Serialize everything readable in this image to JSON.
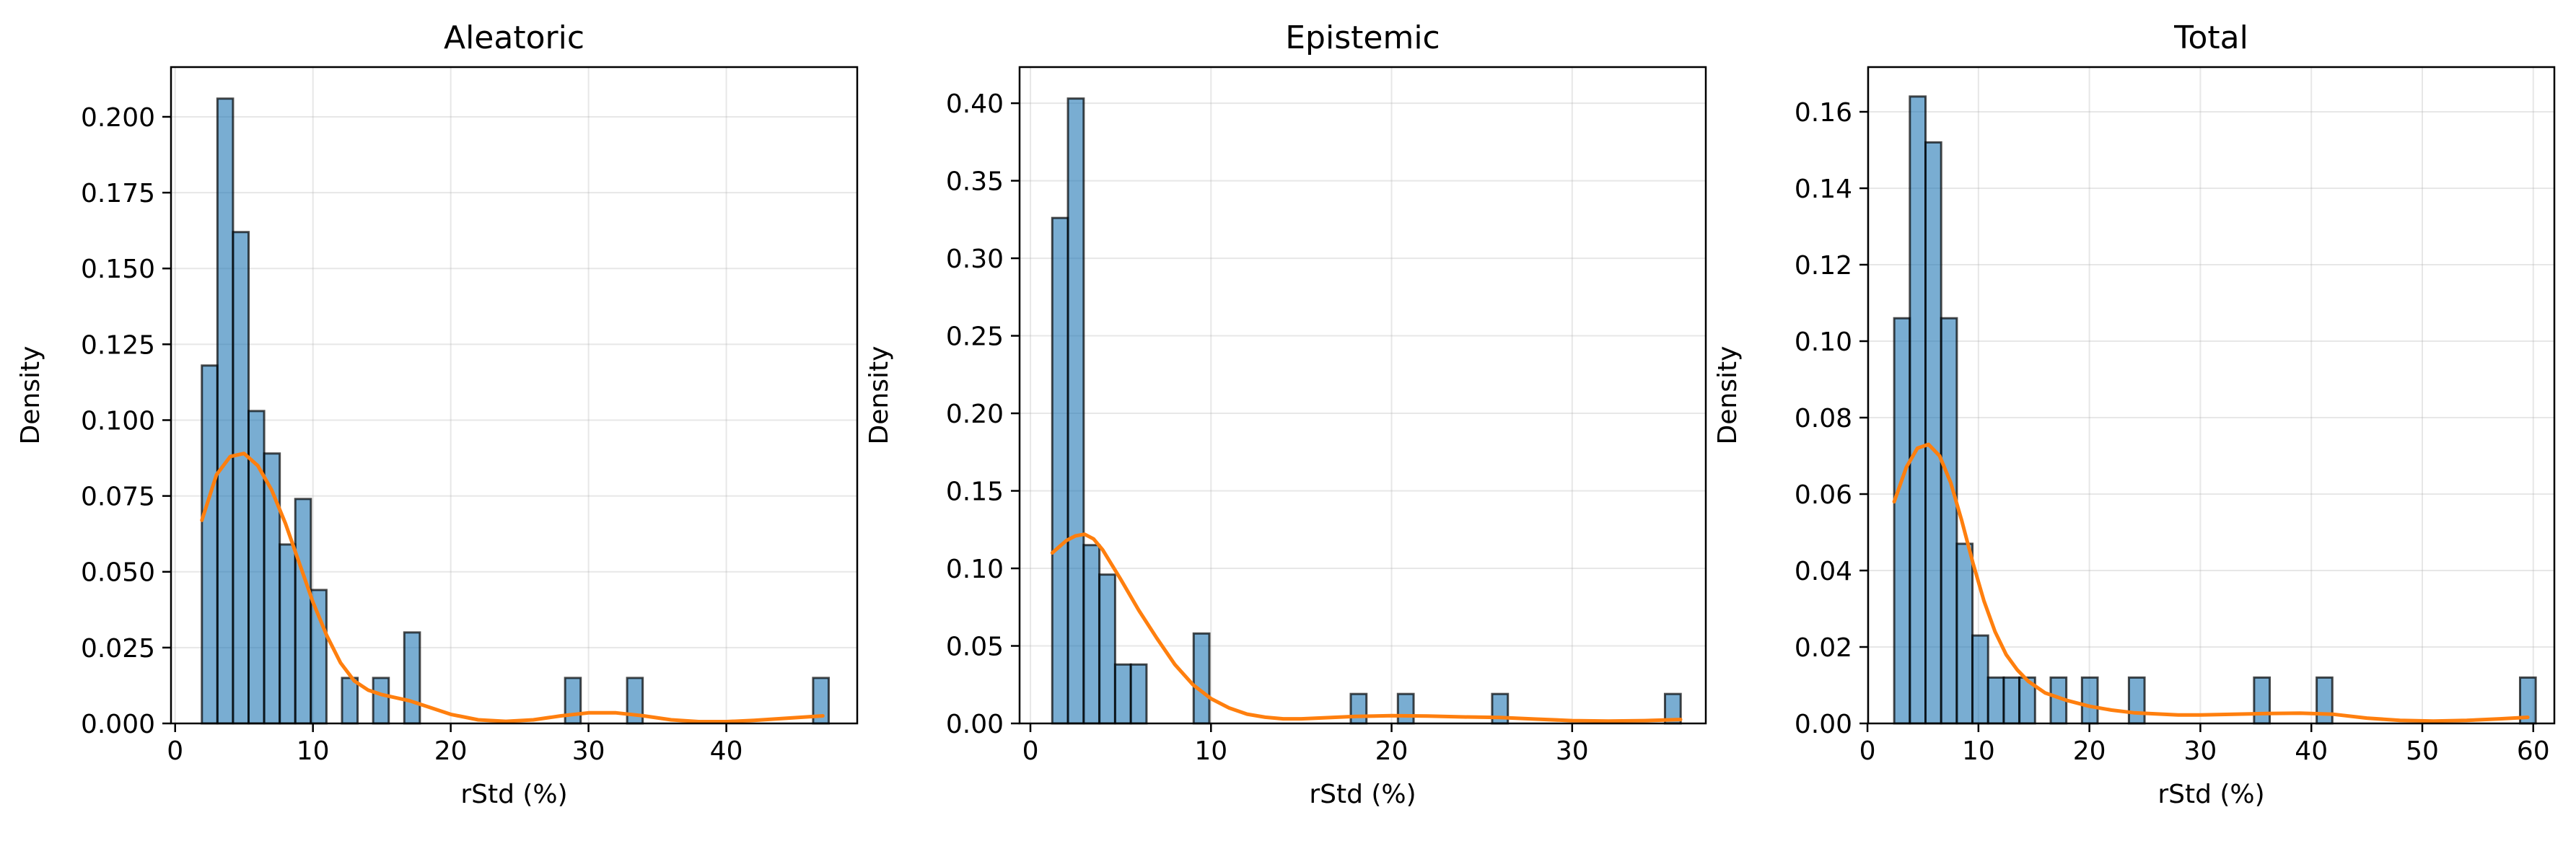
{
  "figure": {
    "background": "#ffffff"
  },
  "chart_data": [
    {
      "type": "bar",
      "title": "Aleatoric",
      "xlabel": "rStd (%)",
      "ylabel": "Density",
      "xlim": [
        -0.3,
        49.5
      ],
      "ylim": [
        0,
        0.2164
      ],
      "xticks": [
        0,
        10,
        20,
        30,
        40
      ],
      "yticks": [
        0.0,
        0.025,
        0.05,
        0.075,
        0.1,
        0.125,
        0.15,
        0.175,
        0.2
      ],
      "ytick_labels": [
        "0.000",
        "0.025",
        "0.050",
        "0.075",
        "0.100",
        "0.125",
        "0.150",
        "0.175",
        "0.200"
      ],
      "grid": true,
      "bar_color": "#1f77b4",
      "curve_color": "#ff7f0e",
      "bin_width": 1.13,
      "bin_starts": [
        1.94,
        3.07,
        4.2,
        5.33,
        6.46,
        7.59,
        8.72,
        9.85,
        12.11,
        14.37,
        16.63,
        28.3,
        32.8,
        46.3
      ],
      "values": [
        0.118,
        0.206,
        0.162,
        0.103,
        0.089,
        0.059,
        0.074,
        0.044,
        0.015,
        0.015,
        0.03,
        0.015,
        0.015,
        0.015
      ],
      "kde": {
        "x": [
          1.94,
          3.0,
          4.0,
          5.0,
          6.0,
          7.0,
          8.0,
          9.0,
          10.0,
          11.0,
          12.0,
          13.0,
          14.0,
          15.0,
          16.0,
          17.0,
          18.0,
          20.0,
          22.0,
          24.0,
          26.0,
          28.0,
          30.0,
          32.0,
          34.0,
          36.0,
          38.0,
          40.0,
          42.0,
          44.0,
          47.0
        ],
        "y": [
          0.067,
          0.082,
          0.088,
          0.089,
          0.085,
          0.077,
          0.066,
          0.053,
          0.04,
          0.029,
          0.02,
          0.014,
          0.011,
          0.0095,
          0.0085,
          0.0075,
          0.006,
          0.003,
          0.0012,
          0.0007,
          0.0012,
          0.0025,
          0.0035,
          0.0035,
          0.0025,
          0.0012,
          0.0006,
          0.0006,
          0.001,
          0.0016,
          0.0025
        ]
      }
    },
    {
      "type": "bar",
      "title": "Epistemic",
      "xlabel": "rStd (%)",
      "ylabel": "Density",
      "xlim": [
        -0.6,
        37.4
      ],
      "ylim": [
        0,
        0.4233
      ],
      "xticks": [
        0,
        10,
        20,
        30
      ],
      "yticks": [
        0.0,
        0.05,
        0.1,
        0.15,
        0.2,
        0.25,
        0.3,
        0.35,
        0.4
      ],
      "ytick_labels": [
        "0.00",
        "0.05",
        "0.10",
        "0.15",
        "0.20",
        "0.25",
        "0.30",
        "0.35",
        "0.40"
      ],
      "grid": true,
      "bar_color": "#1f77b4",
      "curve_color": "#ff7f0e",
      "bin_width": 0.87,
      "bin_starts": [
        1.21,
        2.08,
        2.95,
        3.82,
        4.69,
        5.56,
        9.04,
        17.74,
        20.35,
        25.57,
        35.14
      ],
      "values": [
        0.326,
        0.403,
        0.115,
        0.096,
        0.038,
        0.038,
        0.058,
        0.019,
        0.019,
        0.019,
        0.019
      ],
      "kde": {
        "x": [
          1.21,
          2.0,
          2.5,
          3.0,
          3.5,
          4.0,
          5.0,
          6.0,
          7.0,
          8.0,
          9.0,
          10.0,
          11.0,
          12.0,
          13.0,
          14.0,
          15.0,
          16.0,
          18.0,
          20.0,
          22.0,
          24.0,
          26.0,
          28.0,
          30.0,
          32.0,
          34.0,
          36.0
        ],
        "y": [
          0.11,
          0.118,
          0.121,
          0.122,
          0.119,
          0.112,
          0.093,
          0.073,
          0.055,
          0.038,
          0.025,
          0.016,
          0.01,
          0.006,
          0.004,
          0.003,
          0.003,
          0.0035,
          0.0045,
          0.005,
          0.0048,
          0.0042,
          0.0038,
          0.0028,
          0.0018,
          0.0015,
          0.0018,
          0.0025
        ]
      }
    },
    {
      "type": "bar",
      "title": "Total",
      "xlabel": "rStd (%)",
      "ylabel": "Density",
      "xlim": [
        0.06,
        61.9
      ],
      "ylim": [
        0,
        0.1717
      ],
      "xticks": [
        0,
        10,
        20,
        30,
        40,
        50,
        60
      ],
      "yticks": [
        0.0,
        0.02,
        0.04,
        0.06,
        0.08,
        0.1,
        0.12,
        0.14,
        0.16
      ],
      "ytick_labels": [
        "0.00",
        "0.02",
        "0.04",
        "0.06",
        "0.08",
        "0.10",
        "0.12",
        "0.14",
        "0.16"
      ],
      "grid": true,
      "bar_color": "#1f77b4",
      "curve_color": "#ff7f0e",
      "bin_width": 1.41,
      "bin_starts": [
        2.41,
        3.82,
        5.23,
        6.64,
        8.05,
        9.46,
        10.87,
        12.28,
        13.69,
        16.51,
        19.33,
        23.56,
        34.84,
        40.48,
        58.81
      ],
      "values": [
        0.106,
        0.164,
        0.152,
        0.106,
        0.047,
        0.023,
        0.012,
        0.012,
        0.012,
        0.012,
        0.012,
        0.012,
        0.012,
        0.012,
        0.012
      ],
      "kde": {
        "x": [
          2.41,
          3.5,
          4.5,
          5.5,
          6.5,
          7.5,
          8.5,
          9.5,
          10.5,
          11.5,
          12.5,
          13.5,
          14.5,
          16.0,
          18.0,
          20.0,
          22.0,
          24.0,
          26.0,
          28.0,
          30.0,
          33.0,
          36.0,
          39.0,
          42.0,
          45.0,
          48.0,
          51.0,
          54.0,
          57.0,
          59.5
        ],
        "y": [
          0.058,
          0.067,
          0.072,
          0.073,
          0.07,
          0.063,
          0.053,
          0.042,
          0.032,
          0.024,
          0.018,
          0.014,
          0.011,
          0.008,
          0.006,
          0.0045,
          0.0035,
          0.0028,
          0.0025,
          0.0022,
          0.0022,
          0.0024,
          0.0026,
          0.0027,
          0.0024,
          0.0014,
          0.0008,
          0.0006,
          0.0008,
          0.0012,
          0.0016
        ]
      }
    }
  ]
}
